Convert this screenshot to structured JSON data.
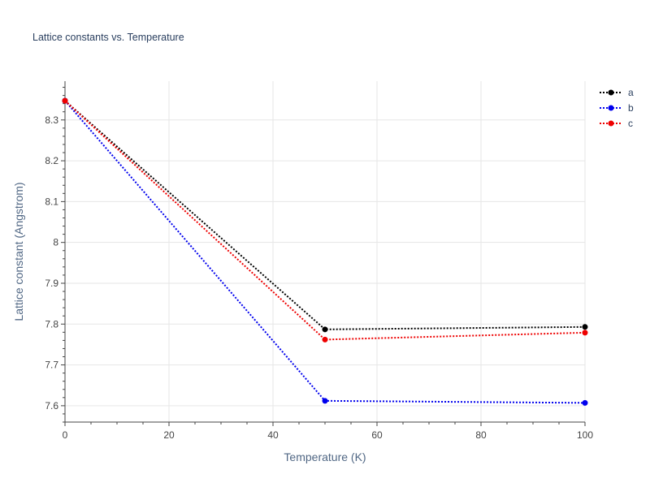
{
  "chart_data": {
    "type": "line",
    "title": "Lattice constants vs. Temperature",
    "xlabel": "Temperature (K)",
    "ylabel": "Lattice constant (Angstrom)",
    "xlim": [
      0,
      100
    ],
    "ylim": [
      7.56,
      8.395
    ],
    "xticks": [
      0,
      20,
      40,
      60,
      80,
      100
    ],
    "xtick_labels": [
      "0",
      "20",
      "40",
      "60",
      "80",
      "100"
    ],
    "yticks": [
      7.6,
      7.7,
      7.8,
      7.9,
      8.0,
      8.1,
      8.2,
      8.3
    ],
    "ytick_labels": [
      "7.6",
      "7.7",
      "7.8",
      "7.9",
      "8",
      "8.1",
      "8.2",
      "8.3"
    ],
    "grid": true,
    "legend_position": "top-right",
    "series": [
      {
        "name": "a",
        "color": "#000000",
        "x": [
          0,
          50,
          100
        ],
        "y": [
          8.347,
          7.787,
          7.793
        ]
      },
      {
        "name": "b",
        "color": "#0000ee",
        "x": [
          0,
          50,
          100
        ],
        "y": [
          8.347,
          7.612,
          7.607
        ]
      },
      {
        "name": "c",
        "color": "#ee0000",
        "x": [
          0,
          50,
          100
        ],
        "y": [
          8.347,
          7.762,
          7.779
        ]
      }
    ]
  }
}
